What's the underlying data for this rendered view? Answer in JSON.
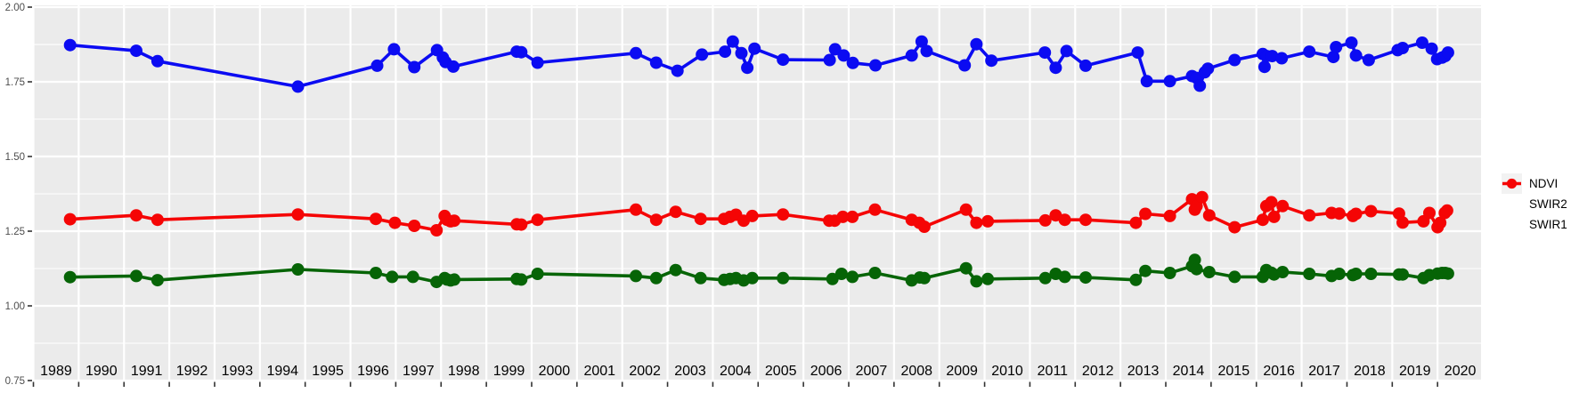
{
  "chart_data": {
    "type": "line",
    "title": "",
    "xlabel": "",
    "ylabel": "",
    "grid": true,
    "legend_position": "right",
    "panel_bg": "#EBEBEB",
    "grid_color": "#FFFFFF",
    "axis_text_color": "#4D4D4D",
    "tick_color": "#333333",
    "year_label_color": "#000000",
    "legend_key_bg": "#F2F2F2",
    "x_domain": [
      1988.98,
      2020.96
    ],
    "y_domain": [
      0.747,
      2.006
    ],
    "y_ticks": [
      0.75,
      1.0,
      1.25,
      1.5,
      1.75,
      2.0
    ],
    "y_tick_labels": [
      "0.75",
      "1.00",
      "1.25",
      "1.50",
      "1.75",
      "2.00"
    ],
    "y_minor_ticks": [
      0.875,
      1.125,
      1.375,
      1.625,
      1.875
    ],
    "x_ticks": [
      1989,
      1990,
      1991,
      1992,
      1993,
      1994,
      1995,
      1996,
      1997,
      1998,
      1999,
      2000,
      2001,
      2002,
      2003,
      2004,
      2005,
      2006,
      2007,
      2008,
      2009,
      2010,
      2011,
      2012,
      2013,
      2014,
      2015,
      2016,
      2017,
      2018,
      2019,
      2020
    ],
    "x_tick_labels": [
      "1989",
      "1990",
      "1991",
      "1992",
      "1993",
      "1994",
      "1995",
      "1996",
      "1997",
      "1998",
      "1999",
      "2000",
      "2001",
      "2002",
      "2003",
      "2004",
      "2005",
      "2006",
      "2007",
      "2008",
      "2009",
      "2010",
      "2011",
      "2012",
      "2013",
      "2014",
      "2015",
      "2016",
      "2017",
      "2018",
      "2019",
      "2020"
    ],
    "series": [
      {
        "name": "NDVI",
        "color": "#0B0BF2",
        "points": [
          [
            1989.81,
            1.873
          ],
          [
            1991.27,
            1.854
          ],
          [
            1991.74,
            1.819
          ],
          [
            1994.84,
            1.734
          ],
          [
            1996.59,
            1.804
          ],
          [
            1996.96,
            1.859
          ],
          [
            1997.41,
            1.799
          ],
          [
            1997.91,
            1.856
          ],
          [
            1998.04,
            1.831
          ],
          [
            1998.1,
            1.816
          ],
          [
            1998.27,
            1.801
          ],
          [
            1999.67,
            1.851
          ],
          [
            1999.77,
            1.849
          ],
          [
            2000.13,
            1.814
          ],
          [
            2002.3,
            1.846
          ],
          [
            2002.75,
            1.814
          ],
          [
            2003.22,
            1.787
          ],
          [
            2003.76,
            1.841
          ],
          [
            2004.27,
            1.851
          ],
          [
            2004.44,
            1.885
          ],
          [
            2004.63,
            1.846
          ],
          [
            2004.76,
            1.797
          ],
          [
            2004.92,
            1.861
          ],
          [
            2005.55,
            1.824
          ],
          [
            2006.58,
            1.823
          ],
          [
            2006.7,
            1.859
          ],
          [
            2006.89,
            1.838
          ],
          [
            2007.09,
            1.813
          ],
          [
            2007.59,
            1.805
          ],
          [
            2008.39,
            1.838
          ],
          [
            2008.61,
            1.885
          ],
          [
            2008.72,
            1.853
          ],
          [
            2009.56,
            1.805
          ],
          [
            2009.82,
            1.876
          ],
          [
            2010.15,
            1.821
          ],
          [
            2011.33,
            1.848
          ],
          [
            2011.57,
            1.797
          ],
          [
            2011.81,
            1.853
          ],
          [
            2012.23,
            1.804
          ],
          [
            2013.38,
            1.848
          ],
          [
            2013.58,
            1.752
          ],
          [
            2014.09,
            1.752
          ],
          [
            2014.58,
            1.769
          ],
          [
            2014.68,
            1.763
          ],
          [
            2014.75,
            1.737
          ],
          [
            2014.86,
            1.782
          ],
          [
            2014.93,
            1.794
          ],
          [
            2015.52,
            1.823
          ],
          [
            2016.14,
            1.843
          ],
          [
            2016.18,
            1.8
          ],
          [
            2016.23,
            1.836
          ],
          [
            2016.35,
            1.836
          ],
          [
            2016.56,
            1.829
          ],
          [
            2017.17,
            1.851
          ],
          [
            2017.7,
            1.833
          ],
          [
            2017.76,
            1.866
          ],
          [
            2018.1,
            1.881
          ],
          [
            2018.2,
            1.838
          ],
          [
            2018.48,
            1.823
          ],
          [
            2019.12,
            1.856
          ],
          [
            2019.23,
            1.863
          ],
          [
            2019.66,
            1.881
          ],
          [
            2019.87,
            1.861
          ],
          [
            2019.99,
            1.826
          ],
          [
            2020.1,
            1.831
          ],
          [
            2020.17,
            1.836
          ],
          [
            2020.23,
            1.848
          ]
        ]
      },
      {
        "name": "SWIR2",
        "color": "#066406",
        "points": [
          [
            1989.81,
            1.096
          ],
          [
            1991.27,
            1.1
          ],
          [
            1991.74,
            1.086
          ],
          [
            1994.84,
            1.122
          ],
          [
            1996.56,
            1.11
          ],
          [
            1996.92,
            1.097
          ],
          [
            1997.38,
            1.097
          ],
          [
            1997.9,
            1.08
          ],
          [
            1998.08,
            1.093
          ],
          [
            1998.13,
            1.088
          ],
          [
            1998.21,
            1.085
          ],
          [
            1998.29,
            1.088
          ],
          [
            1999.67,
            1.09
          ],
          [
            1999.77,
            1.088
          ],
          [
            2000.13,
            1.107
          ],
          [
            2002.3,
            1.1
          ],
          [
            2002.75,
            1.093
          ],
          [
            2003.18,
            1.12
          ],
          [
            2003.73,
            1.093
          ],
          [
            2004.25,
            1.087
          ],
          [
            2004.38,
            1.09
          ],
          [
            2004.51,
            1.093
          ],
          [
            2004.68,
            1.085
          ],
          [
            2004.87,
            1.093
          ],
          [
            2005.55,
            1.093
          ],
          [
            2006.64,
            1.09
          ],
          [
            2006.84,
            1.107
          ],
          [
            2007.08,
            1.097
          ],
          [
            2007.58,
            1.11
          ],
          [
            2008.39,
            1.085
          ],
          [
            2008.57,
            1.095
          ],
          [
            2008.67,
            1.093
          ],
          [
            2009.59,
            1.126
          ],
          [
            2009.82,
            1.082
          ],
          [
            2010.07,
            1.09
          ],
          [
            2011.34,
            1.093
          ],
          [
            2011.57,
            1.107
          ],
          [
            2011.77,
            1.097
          ],
          [
            2012.23,
            1.095
          ],
          [
            2013.34,
            1.087
          ],
          [
            2013.55,
            1.117
          ],
          [
            2014.09,
            1.11
          ],
          [
            2014.58,
            1.133
          ],
          [
            2014.64,
            1.154
          ],
          [
            2014.68,
            1.123
          ],
          [
            2014.96,
            1.113
          ],
          [
            2015.52,
            1.097
          ],
          [
            2016.14,
            1.097
          ],
          [
            2016.22,
            1.12
          ],
          [
            2016.33,
            1.111
          ],
          [
            2016.39,
            1.105
          ],
          [
            2016.58,
            1.113
          ],
          [
            2017.17,
            1.107
          ],
          [
            2017.66,
            1.1
          ],
          [
            2017.83,
            1.107
          ],
          [
            2018.13,
            1.103
          ],
          [
            2018.2,
            1.107
          ],
          [
            2018.53,
            1.107
          ],
          [
            2019.15,
            1.105
          ],
          [
            2019.23,
            1.105
          ],
          [
            2019.69,
            1.093
          ],
          [
            2019.82,
            1.103
          ],
          [
            2020.0,
            1.108
          ],
          [
            2020.1,
            1.11
          ],
          [
            2020.17,
            1.11
          ],
          [
            2020.23,
            1.108
          ]
        ]
      },
      {
        "name": "SWIR1",
        "color": "#F50505",
        "points": [
          [
            1989.81,
            1.29
          ],
          [
            1991.27,
            1.303
          ],
          [
            1991.74,
            1.288
          ],
          [
            1994.84,
            1.306
          ],
          [
            1996.56,
            1.291
          ],
          [
            1996.98,
            1.278
          ],
          [
            1997.41,
            1.268
          ],
          [
            1997.9,
            1.253
          ],
          [
            1998.08,
            1.301
          ],
          [
            1998.13,
            1.288
          ],
          [
            1998.21,
            1.283
          ],
          [
            1998.29,
            1.285
          ],
          [
            1999.67,
            1.273
          ],
          [
            1999.77,
            1.272
          ],
          [
            2000.13,
            1.288
          ],
          [
            2002.3,
            1.322
          ],
          [
            2002.75,
            1.288
          ],
          [
            2003.18,
            1.315
          ],
          [
            2003.73,
            1.291
          ],
          [
            2004.25,
            1.291
          ],
          [
            2004.38,
            1.298
          ],
          [
            2004.51,
            1.305
          ],
          [
            2004.68,
            1.285
          ],
          [
            2004.87,
            1.301
          ],
          [
            2005.55,
            1.306
          ],
          [
            2006.57,
            1.285
          ],
          [
            2006.69,
            1.285
          ],
          [
            2006.87,
            1.298
          ],
          [
            2007.08,
            1.298
          ],
          [
            2007.58,
            1.322
          ],
          [
            2008.39,
            1.288
          ],
          [
            2008.56,
            1.278
          ],
          [
            2008.67,
            1.265
          ],
          [
            2009.59,
            1.322
          ],
          [
            2009.82,
            1.278
          ],
          [
            2010.07,
            1.283
          ],
          [
            2011.34,
            1.286
          ],
          [
            2011.57,
            1.303
          ],
          [
            2011.77,
            1.288
          ],
          [
            2012.23,
            1.288
          ],
          [
            2013.34,
            1.278
          ],
          [
            2013.55,
            1.308
          ],
          [
            2014.09,
            1.301
          ],
          [
            2014.58,
            1.357
          ],
          [
            2014.64,
            1.322
          ],
          [
            2014.68,
            1.334
          ],
          [
            2014.8,
            1.364
          ],
          [
            2014.96,
            1.303
          ],
          [
            2015.52,
            1.263
          ],
          [
            2016.14,
            1.288
          ],
          [
            2016.22,
            1.334
          ],
          [
            2016.33,
            1.347
          ],
          [
            2016.39,
            1.298
          ],
          [
            2016.58,
            1.334
          ],
          [
            2017.17,
            1.303
          ],
          [
            2017.66,
            1.311
          ],
          [
            2017.83,
            1.309
          ],
          [
            2018.13,
            1.301
          ],
          [
            2018.2,
            1.308
          ],
          [
            2018.53,
            1.317
          ],
          [
            2019.15,
            1.309
          ],
          [
            2019.23,
            1.279
          ],
          [
            2019.69,
            1.283
          ],
          [
            2019.82,
            1.311
          ],
          [
            2020.0,
            1.263
          ],
          [
            2020.06,
            1.278
          ],
          [
            2020.16,
            1.311
          ],
          [
            2020.21,
            1.319
          ]
        ]
      }
    ]
  }
}
